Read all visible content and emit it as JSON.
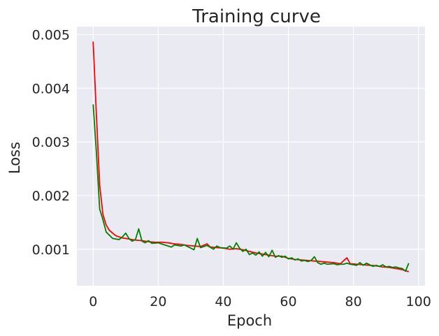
{
  "chart_data": {
    "type": "line",
    "title": "Training curve",
    "xlabel": "Epoch",
    "ylabel": "Loss",
    "xlim": [
      -5,
      102
    ],
    "ylim": [
      0.00032,
      0.00515
    ],
    "xticks": [
      0,
      20,
      40,
      60,
      80,
      100
    ],
    "xtick_labels": [
      "0",
      "20",
      "40",
      "60",
      "80",
      "100"
    ],
    "yticks": [
      0.001,
      0.002,
      0.003,
      0.004,
      0.005
    ],
    "ytick_labels": [
      "0.001",
      "0.002",
      "0.003",
      "0.004",
      "0.005"
    ],
    "grid": true,
    "legend": null,
    "background": "#eaeaf2",
    "series": [
      {
        "color": "#ff0000",
        "points": [
          [
            0,
            0.00487
          ],
          [
            1,
            0.0035
          ],
          [
            2,
            0.0022
          ],
          [
            3,
            0.00165
          ],
          [
            4,
            0.00145
          ],
          [
            5,
            0.00135
          ],
          [
            7,
            0.00125
          ],
          [
            9,
            0.00121
          ],
          [
            11,
            0.00119
          ],
          [
            13,
            0.00117
          ],
          [
            15,
            0.00116
          ],
          [
            17,
            0.00114
          ],
          [
            19,
            0.00113
          ],
          [
            21,
            0.00113
          ],
          [
            23,
            0.00112
          ],
          [
            25,
            0.0011
          ],
          [
            27,
            0.00109
          ],
          [
            29,
            0.00107
          ],
          [
            31,
            0.00106
          ],
          [
            33,
            0.00105
          ],
          [
            35,
            0.0011
          ],
          [
            36,
            0.00104
          ],
          [
            38,
            0.00103
          ],
          [
            40,
            0.00102
          ],
          [
            42,
            0.001
          ],
          [
            44,
            0.00101
          ],
          [
            46,
            0.00099
          ],
          [
            48,
            0.00096
          ],
          [
            50,
            0.00093
          ],
          [
            52,
            0.00091
          ],
          [
            54,
            0.00089
          ],
          [
            56,
            0.00087
          ],
          [
            58,
            0.00087
          ],
          [
            60,
            0.00083
          ],
          [
            62,
            0.00081
          ],
          [
            64,
            0.0008
          ],
          [
            66,
            0.00079
          ],
          [
            68,
            0.00078
          ],
          [
            70,
            0.00077
          ],
          [
            72,
            0.00076
          ],
          [
            74,
            0.00075
          ],
          [
            76,
            0.00073
          ],
          [
            78,
            0.00084
          ],
          [
            79,
            0.00073
          ],
          [
            81,
            0.00072
          ],
          [
            83,
            0.00071
          ],
          [
            85,
            0.0007
          ],
          [
            87,
            0.00069
          ],
          [
            89,
            0.00067
          ],
          [
            91,
            0.00066
          ],
          [
            93,
            0.00064
          ],
          [
            95,
            0.00062
          ],
          [
            97,
            0.00058
          ]
        ]
      },
      {
        "color": "#008000",
        "points": [
          [
            0,
            0.0037
          ],
          [
            1,
            0.0028
          ],
          [
            2,
            0.00175
          ],
          [
            3,
            0.00155
          ],
          [
            4,
            0.00132
          ],
          [
            6,
            0.0012
          ],
          [
            8,
            0.00118
          ],
          [
            9,
            0.00123
          ],
          [
            10,
            0.0013
          ],
          [
            11,
            0.0012
          ],
          [
            12,
            0.00115
          ],
          [
            13,
            0.00118
          ],
          [
            14,
            0.00138
          ],
          [
            15,
            0.00115
          ],
          [
            16,
            0.00112
          ],
          [
            17,
            0.00116
          ],
          [
            18,
            0.00111
          ],
          [
            20,
            0.00112
          ],
          [
            21,
            0.0011
          ],
          [
            22,
            0.00108
          ],
          [
            23,
            0.00106
          ],
          [
            24,
            0.00104
          ],
          [
            25,
            0.00108
          ],
          [
            27,
            0.00106
          ],
          [
            28,
            0.00108
          ],
          [
            30,
            0.00102
          ],
          [
            31,
            0.00099
          ],
          [
            32,
            0.0012
          ],
          [
            33,
            0.00103
          ],
          [
            34,
            0.00105
          ],
          [
            35,
            0.00107
          ],
          [
            37,
            0.001
          ],
          [
            38,
            0.00106
          ],
          [
            39,
            0.00103
          ],
          [
            41,
            0.00102
          ],
          [
            42,
            0.00106
          ],
          [
            43,
            0.001
          ],
          [
            44,
            0.00112
          ],
          [
            45,
            0.00102
          ],
          [
            46,
            0.00096
          ],
          [
            47,
            0.001
          ],
          [
            48,
            0.0009
          ],
          [
            49,
            0.00093
          ],
          [
            50,
            0.00089
          ],
          [
            51,
            0.00095
          ],
          [
            52,
            0.00087
          ],
          [
            53,
            0.00094
          ],
          [
            54,
            0.00086
          ],
          [
            55,
            0.00098
          ],
          [
            56,
            0.00085
          ],
          [
            57,
            0.00088
          ],
          [
            58,
            0.00085
          ],
          [
            59,
            0.00087
          ],
          [
            60,
            0.00082
          ],
          [
            61,
            0.00084
          ],
          [
            62,
            0.0008
          ],
          [
            63,
            0.00082
          ],
          [
            64,
            0.00078
          ],
          [
            65,
            0.00079
          ],
          [
            66,
            0.00077
          ],
          [
            67,
            0.00079
          ],
          [
            68,
            0.00086
          ],
          [
            69,
            0.00075
          ],
          [
            70,
            0.00072
          ],
          [
            71,
            0.00074
          ],
          [
            72,
            0.00072
          ],
          [
            74,
            0.00073
          ],
          [
            75,
            0.00071
          ],
          [
            76,
            0.00072
          ],
          [
            77,
            0.00072
          ],
          [
            78,
            0.00074
          ],
          [
            79,
            0.00072
          ],
          [
            80,
            0.00071
          ],
          [
            81,
            0.0007
          ],
          [
            82,
            0.00075
          ],
          [
            83,
            0.0007
          ],
          [
            84,
            0.00074
          ],
          [
            85,
            0.00071
          ],
          [
            86,
            0.00068
          ],
          [
            87,
            0.0007
          ],
          [
            88,
            0.00068
          ],
          [
            89,
            0.00071
          ],
          [
            90,
            0.00067
          ],
          [
            91,
            0.00068
          ],
          [
            92,
            0.00066
          ],
          [
            93,
            0.00067
          ],
          [
            94,
            0.00065
          ],
          [
            95,
            0.00064
          ],
          [
            96,
            0.00059
          ],
          [
            97,
            0.00074
          ]
        ]
      }
    ]
  }
}
